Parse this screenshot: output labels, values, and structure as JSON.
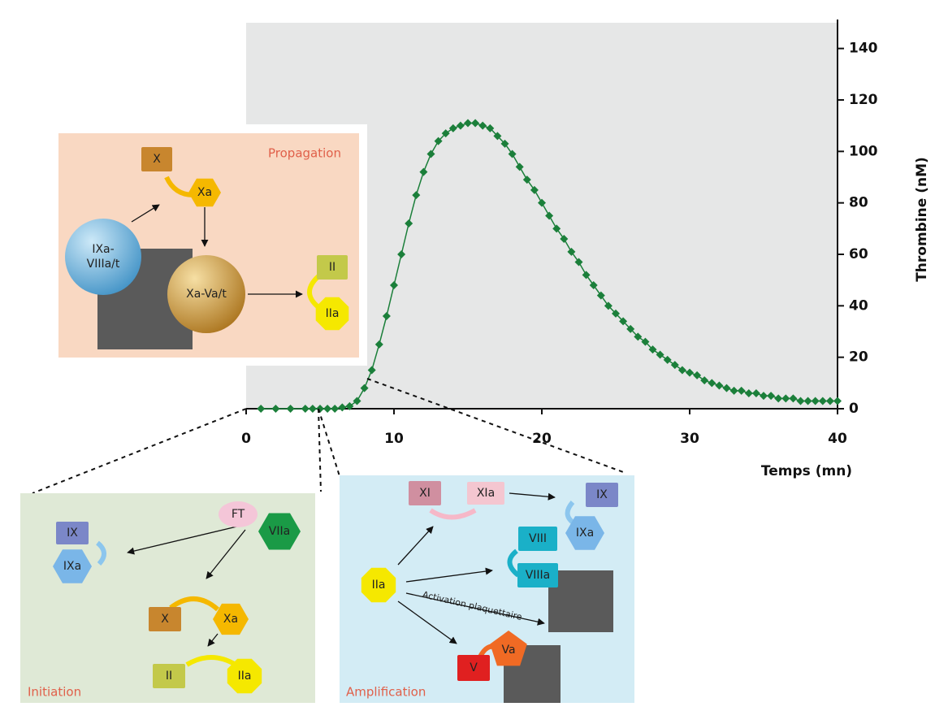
{
  "chart_data": {
    "type": "line",
    "xlabel": "Temps (mn)",
    "ylabel": "Thrombine (nM)",
    "x": [
      1,
      2,
      3,
      4,
      4.5,
      5,
      5.5,
      6,
      6.5,
      7,
      7.5,
      8,
      8.5,
      9,
      9.5,
      10,
      10.5,
      11,
      11.5,
      12,
      12.5,
      13,
      13.5,
      14,
      14.5,
      15,
      15.5,
      16,
      16.5,
      17,
      17.5,
      18,
      18.5,
      19,
      19.5,
      20,
      20.5,
      21,
      21.5,
      22,
      22.5,
      23,
      23.5,
      24,
      24.5,
      25,
      25.5,
      26,
      26.5,
      27,
      27.5,
      28,
      28.5,
      29,
      29.5,
      30,
      30.5,
      31,
      31.5,
      32,
      32.5,
      33,
      33.5,
      34,
      34.5,
      35,
      35.5,
      36,
      36.5,
      37,
      37.5,
      38,
      38.5,
      39,
      39.5,
      40
    ],
    "series": [
      {
        "name": "Thrombine",
        "color": "#1b7f3a",
        "values": [
          0,
          0,
          0,
          0,
          0,
          0,
          0,
          0,
          0.5,
          1,
          3,
          8,
          15,
          25,
          36,
          48,
          60,
          72,
          83,
          92,
          99,
          104,
          107,
          109,
          110,
          111,
          111,
          110,
          109,
          106,
          103,
          99,
          94,
          89,
          85,
          80,
          75,
          70,
          66,
          61,
          57,
          52,
          48,
          44,
          40,
          37,
          34,
          31,
          28,
          26,
          23,
          21,
          19,
          17,
          15,
          14,
          13,
          11,
          10,
          9,
          8,
          7,
          7,
          6,
          6,
          5,
          5,
          4,
          4,
          4,
          3,
          3,
          3,
          3,
          3,
          3
        ]
      }
    ],
    "xlim": [
      0,
      40
    ],
    "xticks": [
      0,
      10,
      20,
      30,
      40
    ],
    "ylim": [
      0,
      150
    ],
    "yticks": [
      0,
      20,
      40,
      60,
      80,
      100,
      120,
      140
    ],
    "plot_background": "#e6e7e7"
  },
  "propagation": {
    "title": "Propagation",
    "nodes": [
      "X",
      "Xa",
      [
        "IXa-",
        "VIIIa/t"
      ],
      "Xa-Va/t",
      "II",
      "IIa"
    ]
  },
  "initiation": {
    "title": "Initiation",
    "nodes": [
      "FT",
      "VIIa",
      "IX",
      "IXa",
      "X",
      "Xa",
      "II",
      "IIa"
    ]
  },
  "amplification": {
    "title": "Amplification",
    "annotation": "Activation plaquettaire",
    "nodes": [
      "XI",
      "XIa",
      "IX",
      "IXa",
      "IIa",
      "VIII",
      "VIIIa",
      "V",
      "Va"
    ]
  }
}
